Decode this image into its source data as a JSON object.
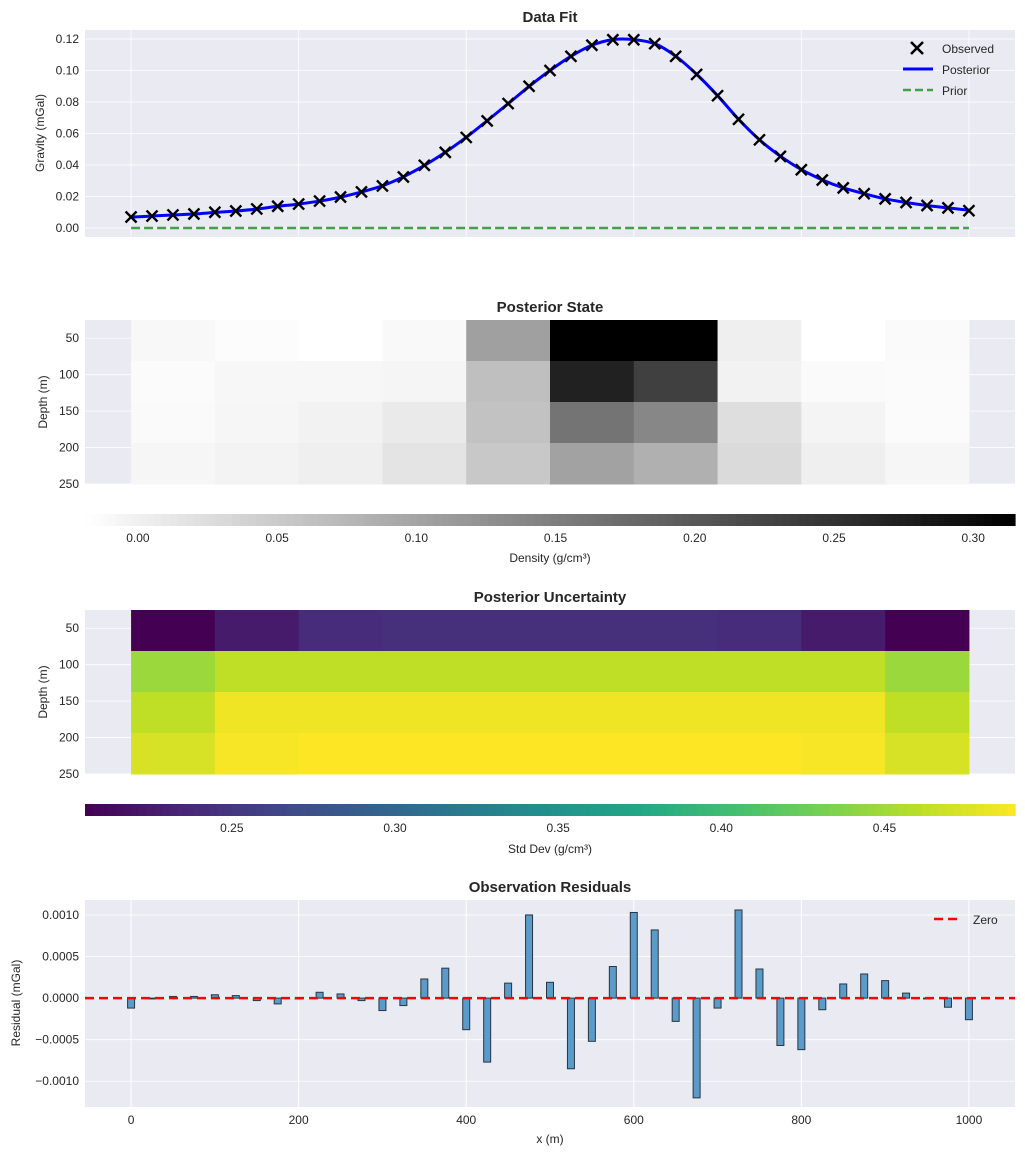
{
  "chart_data": [
    {
      "type": "line",
      "title": "Data Fit",
      "xlabel": "",
      "ylabel": "Gravity (mGal)",
      "xlim": [
        -55,
        1055
      ],
      "ylim": [
        -0.0057,
        0.1257
      ],
      "grid": true,
      "legend_position": "top-right",
      "yticks": [
        "0.00",
        "0.02",
        "0.04",
        "0.06",
        "0.08",
        "0.10",
        "0.12"
      ],
      "ytick_values": [
        0,
        0.02,
        0.04,
        0.06,
        0.08,
        0.1,
        0.12
      ],
      "xgrid_values": [
        0,
        200,
        400,
        600,
        800,
        1000
      ],
      "x": [
        0,
        25,
        50,
        75,
        100,
        125,
        150,
        175,
        200,
        225,
        250,
        275,
        300,
        325,
        350,
        375,
        400,
        425,
        450,
        475,
        500,
        525,
        550,
        575,
        600,
        625,
        650,
        675,
        700,
        725,
        750,
        775,
        800,
        825,
        850,
        875,
        900,
        925,
        950,
        975,
        1000
      ],
      "series": [
        {
          "name": "Observed",
          "style": "x-markers",
          "color": "#000000",
          "values": [
            0.007,
            0.0076,
            0.0083,
            0.0089,
            0.01,
            0.0108,
            0.0121,
            0.0138,
            0.0152,
            0.0171,
            0.0197,
            0.0229,
            0.0267,
            0.0324,
            0.0398,
            0.048,
            0.0575,
            0.068,
            0.079,
            0.09,
            0.1,
            0.109,
            0.116,
            0.1195,
            0.1195,
            0.117,
            0.109,
            0.0975,
            0.084,
            0.069,
            0.056,
            0.0455,
            0.037,
            0.0305,
            0.0255,
            0.0218,
            0.0185,
            0.0162,
            0.0143,
            0.0128,
            0.011
          ]
        },
        {
          "name": "Posterior",
          "style": "solid",
          "color": "#0000ff",
          "values": [
            0.0069,
            0.0076,
            0.0083,
            0.0089,
            0.0099,
            0.0108,
            0.012,
            0.0138,
            0.0152,
            0.0171,
            0.0196,
            0.0229,
            0.0268,
            0.0325,
            0.0397,
            0.0481,
            0.0576,
            0.0681,
            0.0789,
            0.0899,
            0.1,
            0.109,
            0.116,
            0.1196,
            0.1196,
            0.117,
            0.1091,
            0.0976,
            0.084,
            0.0691,
            0.056,
            0.0456,
            0.0371,
            0.0306,
            0.0255,
            0.0218,
            0.0185,
            0.0162,
            0.0143,
            0.0128,
            0.0113
          ]
        },
        {
          "name": "Prior",
          "style": "dashed",
          "color": "#44a048",
          "values": [
            0,
            0,
            0,
            0,
            0,
            0,
            0,
            0,
            0,
            0,
            0,
            0,
            0,
            0,
            0,
            0,
            0,
            0,
            0,
            0,
            0,
            0,
            0,
            0,
            0,
            0,
            0,
            0,
            0,
            0,
            0,
            0,
            0,
            0,
            0,
            0,
            0,
            0,
            0,
            0,
            0
          ]
        }
      ]
    },
    {
      "type": "heatmap",
      "title": "Posterior State",
      "ylabel": "Depth (m)",
      "colormap": "gray_r",
      "xlim": [
        -55,
        1055
      ],
      "ylim": [
        250,
        25
      ],
      "x_edges": [
        0,
        100,
        200,
        300,
        400,
        500,
        600,
        700,
        800,
        900,
        1000
      ],
      "y_edges": [
        25,
        81.25,
        137.5,
        193.75,
        250
      ],
      "yticks": [
        "50",
        "100",
        "150",
        "200",
        "250"
      ],
      "ytick_values": [
        50,
        100,
        150,
        200,
        250
      ],
      "values": [
        [
          -0.01,
          -0.015,
          -0.019,
          -0.011,
          0.105,
          0.315,
          0.315,
          0.002,
          -0.019,
          -0.012
        ],
        [
          -0.014,
          -0.008,
          -0.009,
          -0.006,
          0.065,
          0.272,
          0.231,
          -0.002,
          -0.012,
          -0.014
        ],
        [
          -0.012,
          -0.007,
          -0.002,
          0.009,
          0.061,
          0.163,
          0.138,
          0.024,
          -0.005,
          -0.014
        ],
        [
          -0.007,
          -0.003,
          0.002,
          0.016,
          0.053,
          0.103,
          0.084,
          0.029,
          0.002,
          -0.007
        ]
      ],
      "colorbar": {
        "label": "Density (g/cm³)",
        "orientation": "horizontal",
        "range": [
          -0.019,
          0.315
        ],
        "ticks": [
          "0.00",
          "0.05",
          "0.10",
          "0.15",
          "0.20",
          "0.25",
          "0.30"
        ],
        "tick_values": [
          0,
          0.05,
          0.1,
          0.15,
          0.2,
          0.25,
          0.3
        ]
      }
    },
    {
      "type": "heatmap",
      "title": "Posterior Uncertainty",
      "ylabel": "Depth (m)",
      "colormap": "viridis",
      "xlim": [
        -55,
        1055
      ],
      "ylim": [
        250,
        25
      ],
      "x_edges": [
        0,
        100,
        200,
        300,
        400,
        500,
        600,
        700,
        800,
        900,
        1000
      ],
      "y_edges": [
        25,
        81.25,
        137.5,
        193.75,
        250
      ],
      "yticks": [
        "50",
        "100",
        "150",
        "200",
        "250"
      ],
      "ytick_values": [
        50,
        100,
        150,
        200,
        250
      ],
      "values": [
        [
          0.205,
          0.226,
          0.241,
          0.243,
          0.243,
          0.243,
          0.243,
          0.241,
          0.226,
          0.205
        ],
        [
          0.447,
          0.462,
          0.462,
          0.462,
          0.462,
          0.462,
          0.462,
          0.462,
          0.462,
          0.447
        ],
        [
          0.462,
          0.484,
          0.484,
          0.484,
          0.484,
          0.484,
          0.484,
          0.484,
          0.484,
          0.462
        ],
        [
          0.473,
          0.487,
          0.49,
          0.49,
          0.49,
          0.49,
          0.49,
          0.49,
          0.487,
          0.473
        ]
      ],
      "colorbar": {
        "label": "Std Dev (g/cm³)",
        "orientation": "horizontal",
        "range": [
          0.205,
          0.49
        ],
        "ticks": [
          "0.25",
          "0.30",
          "0.35",
          "0.40",
          "0.45"
        ],
        "tick_values": [
          0.25,
          0.3,
          0.35,
          0.4,
          0.45
        ]
      }
    },
    {
      "type": "bar",
      "title": "Observation Residuals",
      "xlabel": "x (m)",
      "ylabel": "Residual (mGal)",
      "xlim": [
        -55,
        1055
      ],
      "ylim": [
        -0.00131,
        0.00118
      ],
      "grid": true,
      "legend_position": "top-right",
      "bar_color": "#5b9bc9",
      "edge_color": "#2a3540",
      "xticks": [
        "0",
        "200",
        "400",
        "600",
        "800",
        "1000"
      ],
      "xtick_values": [
        0,
        200,
        400,
        600,
        800,
        1000
      ],
      "yticks": [
        "−0.0010",
        "−0.0005",
        "0.0000",
        "0.0005",
        "0.0010"
      ],
      "ytick_values": [
        -0.001,
        -0.0005,
        0,
        0.0005,
        0.001
      ],
      "x": [
        0,
        25,
        50,
        75,
        100,
        125,
        150,
        175,
        200,
        225,
        250,
        275,
        300,
        325,
        350,
        375,
        400,
        425,
        450,
        475,
        500,
        525,
        550,
        575,
        600,
        625,
        650,
        675,
        700,
        725,
        750,
        775,
        800,
        825,
        850,
        875,
        900,
        925,
        950,
        975,
        1000
      ],
      "values": [
        -0.00012,
        -1e-05,
        2e-05,
        2e-05,
        4e-05,
        3e-05,
        -3e-05,
        -7e-05,
        -1e-05,
        7e-05,
        5e-05,
        -3e-05,
        -0.00015,
        -9e-05,
        0.00023,
        0.00036,
        -0.00038,
        -0.00077,
        0.00018,
        0.001,
        0.00019,
        -0.00085,
        -0.00052,
        0.00038,
        0.00103,
        0.00082,
        -0.00028,
        -0.0012,
        -0.00012,
        0.00106,
        0.00035,
        -0.00057,
        -0.00062,
        -0.00014,
        0.00017,
        0.00029,
        0.00021,
        6e-05,
        -1e-05,
        -0.00011,
        -0.00026
      ],
      "reference_line": {
        "name": "Zero",
        "value": 0,
        "style": "dashed",
        "color": "#ff0000"
      }
    }
  ]
}
